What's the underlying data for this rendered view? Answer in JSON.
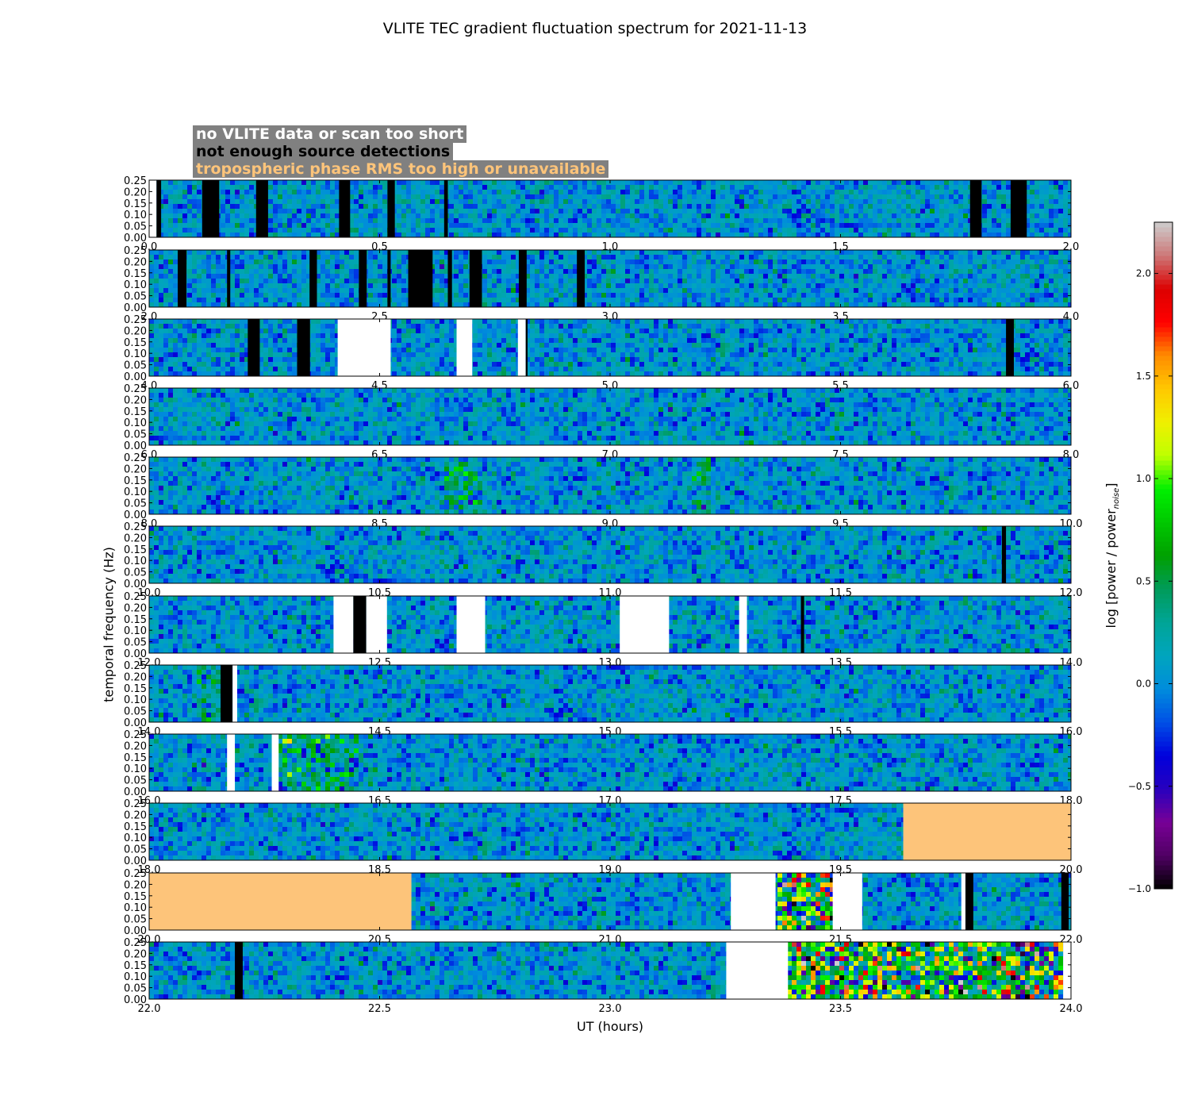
{
  "title": "VLITE TEC gradient fluctuation spectrum for 2021-11-13",
  "legend": {
    "no_data": {
      "label": "no VLITE data or scan too short",
      "color": "#ffffff"
    },
    "no_detections": {
      "label": "not enough source detections",
      "color": "#000000"
    },
    "tropo": {
      "label": "tropospheric phase RMS too high or unavailable",
      "color": "#fdc47a"
    }
  },
  "colors": {
    "legend_background": "#808080",
    "no_data_fill": "#ffffff",
    "no_detections_fill": "#000000",
    "tropo_fill": "#fdc47a"
  },
  "chart_data": {
    "type": "heatmap",
    "title": "VLITE TEC gradient fluctuation spectrum for 2021-11-13",
    "xlabel": "UT (hours)",
    "ylabel": "temporal frequency (Hz)",
    "colorbar": {
      "label_main": "log [power / power",
      "label_sub": "noise",
      "label_end": "]",
      "range": [
        -1.0,
        2.25
      ],
      "ticks": [
        "2.0",
        "1.5",
        "1.0",
        "0.5",
        "0.0",
        "−0.5",
        "−1.0"
      ],
      "tick_values": [
        2.0,
        1.5,
        1.0,
        0.5,
        0.0,
        -0.5,
        -1.0
      ],
      "colormap": "nipy_spectral"
    },
    "ylim": [
      0,
      0.25
    ],
    "yticks": [
      "0.00",
      "0.05",
      "0.10",
      "0.15",
      "0.20",
      "0.25"
    ],
    "panels": [
      {
        "xlim": [
          0,
          2
        ],
        "xticks": [
          "0.0",
          "0.5",
          "1.0",
          "1.5",
          "2.0"
        ],
        "masks": [
          {
            "s": 0.0,
            "e": 0.016,
            "c": "white"
          },
          {
            "s": 0.016,
            "e": 0.026,
            "c": "black"
          },
          {
            "s": 0.115,
            "e": 0.152,
            "c": "black"
          },
          {
            "s": 0.232,
            "e": 0.258,
            "c": "black"
          },
          {
            "s": 0.412,
            "e": 0.436,
            "c": "black"
          },
          {
            "s": 0.517,
            "e": 0.533,
            "c": "black"
          },
          {
            "s": 0.64,
            "e": 0.648,
            "c": "black"
          },
          {
            "s": 1.781,
            "e": 1.806,
            "c": "black"
          },
          {
            "s": 1.869,
            "e": 1.904,
            "c": "black"
          }
        ],
        "hot": []
      },
      {
        "xlim": [
          2,
          4
        ],
        "xticks": [
          "2.0",
          "2.5",
          "3.0",
          "3.5",
          "4.0"
        ],
        "masks": [
          {
            "s": 2.062,
            "e": 2.081,
            "c": "black"
          },
          {
            "s": 2.169,
            "e": 2.176,
            "c": "black"
          },
          {
            "s": 2.348,
            "e": 2.364,
            "c": "black"
          },
          {
            "s": 2.455,
            "e": 2.472,
            "c": "black"
          },
          {
            "s": 2.517,
            "e": 2.524,
            "c": "black"
          },
          {
            "s": 2.562,
            "e": 2.615,
            "c": "black"
          },
          {
            "s": 2.648,
            "e": 2.657,
            "c": "black"
          },
          {
            "s": 2.695,
            "e": 2.722,
            "c": "black"
          },
          {
            "s": 2.802,
            "e": 2.819,
            "c": "black"
          },
          {
            "s": 2.928,
            "e": 2.945,
            "c": "black"
          }
        ],
        "hot": []
      },
      {
        "xlim": [
          4,
          6
        ],
        "xticks": [
          "4.0",
          "4.5",
          "5.0",
          "5.5",
          "6.0"
        ],
        "masks": [
          {
            "s": 4.214,
            "e": 4.24,
            "c": "black"
          },
          {
            "s": 4.321,
            "e": 4.349,
            "c": "black"
          },
          {
            "s": 4.409,
            "e": 4.524,
            "c": "white"
          },
          {
            "s": 4.667,
            "e": 4.701,
            "c": "white"
          },
          {
            "s": 4.8,
            "e": 4.817,
            "c": "white"
          },
          {
            "s": 4.817,
            "e": 4.821,
            "c": "black"
          },
          {
            "s": 5.859,
            "e": 5.876,
            "c": "black"
          }
        ],
        "hot": []
      },
      {
        "xlim": [
          6,
          8
        ],
        "xticks": [
          "6.0",
          "6.5",
          "7.0",
          "7.5",
          "8.0"
        ],
        "masks": [],
        "hot": []
      },
      {
        "xlim": [
          8,
          10
        ],
        "xticks": [
          "8.0",
          "8.5",
          "9.0",
          "9.5",
          "10.0"
        ],
        "masks": [],
        "hot": [
          {
            "s": 8.64,
            "e": 8.72,
            "k": 1.6
          },
          {
            "s": 9.18,
            "e": 9.22,
            "k": 1.8
          }
        ]
      },
      {
        "xlim": [
          10,
          12
        ],
        "xticks": [
          "10.0",
          "10.5",
          "11.0",
          "11.5",
          "12.0"
        ],
        "masks": [
          {
            "s": 11.85,
            "e": 11.859,
            "c": "black"
          }
        ],
        "hot": []
      },
      {
        "xlim": [
          12,
          14
        ],
        "xticks": [
          "12.0",
          "12.5",
          "13.0",
          "13.5",
          "14.0"
        ],
        "masks": [
          {
            "s": 12.4,
            "e": 12.443,
            "c": "white"
          },
          {
            "s": 12.443,
            "e": 12.471,
            "c": "black"
          },
          {
            "s": 12.471,
            "e": 12.516,
            "c": "white"
          },
          {
            "s": 12.667,
            "e": 12.729,
            "c": "white"
          },
          {
            "s": 13.021,
            "e": 13.128,
            "c": "white"
          },
          {
            "s": 13.28,
            "e": 13.297,
            "c": "white"
          },
          {
            "s": 13.414,
            "e": 13.421,
            "c": "black"
          }
        ],
        "hot": []
      },
      {
        "xlim": [
          14,
          16
        ],
        "xticks": [
          "14.0",
          "14.5",
          "15.0",
          "15.5",
          "16.0"
        ],
        "masks": [
          {
            "s": 14.155,
            "e": 14.181,
            "c": "black"
          },
          {
            "s": 14.181,
            "e": 14.191,
            "c": "white"
          }
        ],
        "hot": [
          {
            "s": 14.1,
            "e": 14.16,
            "k": 1.3
          }
        ]
      },
      {
        "xlim": [
          16,
          18
        ],
        "xticks": [
          "16.0",
          "16.5",
          "17.0",
          "17.5",
          "18.0"
        ],
        "masks": [
          {
            "s": 16.169,
            "e": 16.186,
            "c": "white"
          },
          {
            "s": 16.266,
            "e": 16.281,
            "c": "white"
          }
        ],
        "hot": [
          {
            "s": 16.28,
            "e": 16.45,
            "k": 1.8
          }
        ]
      },
      {
        "xlim": [
          18,
          20
        ],
        "xticks": [
          "18.0",
          "18.5",
          "19.0",
          "19.5",
          "20.0"
        ],
        "masks": [
          {
            "s": 19.636,
            "e": 20.0,
            "c": "tropo"
          }
        ],
        "hot": []
      },
      {
        "xlim": [
          20,
          22
        ],
        "xticks": [
          "20.0",
          "20.5",
          "21.0",
          "21.5",
          "22.0"
        ],
        "masks": [
          {
            "s": 20.0,
            "e": 20.569,
            "c": "tropo"
          },
          {
            "s": 21.262,
            "e": 21.359,
            "c": "white"
          },
          {
            "s": 21.483,
            "e": 21.547,
            "c": "white"
          },
          {
            "s": 21.762,
            "e": 21.771,
            "c": "white"
          },
          {
            "s": 21.771,
            "e": 21.788,
            "c": "black"
          },
          {
            "s": 21.979,
            "e": 21.995,
            "c": "black"
          }
        ],
        "hot": [
          {
            "s": 21.359,
            "e": 21.483,
            "k": 4.5
          }
        ]
      },
      {
        "xlim": [
          22,
          24
        ],
        "xticks": [
          "22.0",
          "22.5",
          "23.0",
          "23.5",
          "24.0"
        ],
        "masks": [
          {
            "s": 22.186,
            "e": 22.203,
            "c": "black"
          },
          {
            "s": 23.252,
            "e": 23.386,
            "c": "white"
          },
          {
            "s": 23.983,
            "e": 24.0,
            "c": "white"
          }
        ],
        "hot": [
          {
            "s": 23.386,
            "e": 23.983,
            "k": 3.8
          }
        ]
      }
    ]
  }
}
